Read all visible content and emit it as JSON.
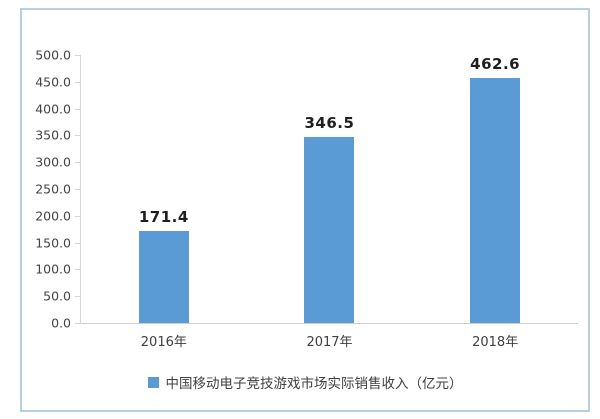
{
  "chart_data": {
    "type": "bar",
    "title": "",
    "categories": [
      "2016年",
      "2017年",
      "2018年"
    ],
    "values": [
      171.4,
      346.5,
      462.6
    ],
    "value_labels": [
      "171.4",
      "346.5",
      "462.6"
    ],
    "series_label": "中国移动电子竞技游戏市场实际销售收入（亿元）",
    "ylim": [
      0,
      500
    ],
    "y_tick_step": 50,
    "y_ticks": [
      "500.0",
      "450.0",
      "400.0",
      "350.0",
      "300.0",
      "250.0",
      "200.0",
      "150.0",
      "100.0",
      "50.0",
      "0.0"
    ],
    "grid": false,
    "legend_position": "bottom",
    "colors": {
      "bar": "#5B9BD5",
      "frame_border": "#b9cede",
      "axis_line": "#d6d6d6",
      "tick_text": "#444444",
      "value_text": "#1f1f1f"
    }
  }
}
